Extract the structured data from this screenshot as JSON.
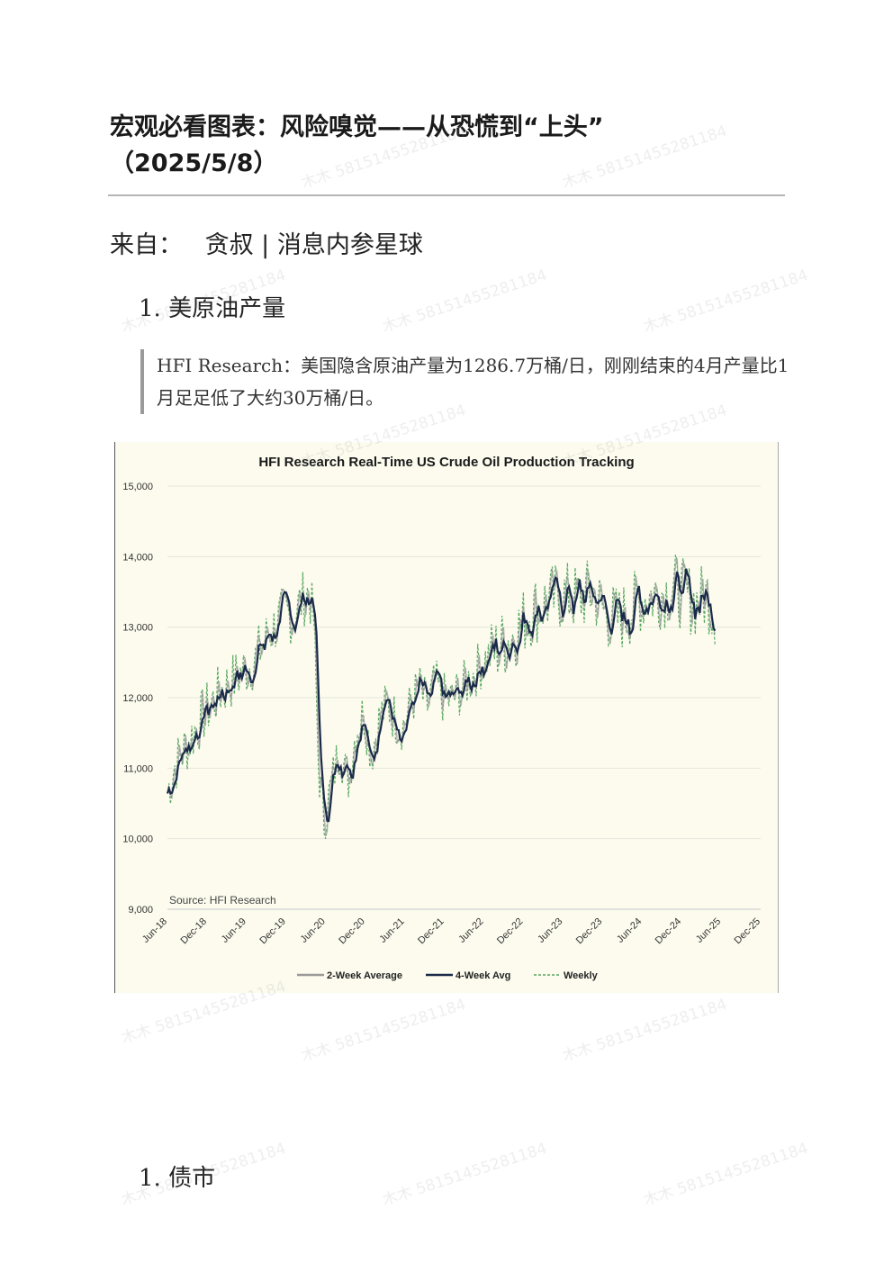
{
  "article": {
    "title_line1": "宏观必看图表：风险嗅觉——从恐慌到“上头”",
    "title_line2": "（2025/5/8）",
    "source_prefix": "来自：",
    "source_name": "贪叔 | 消息内参星球"
  },
  "sections": [
    {
      "heading": "1. 美原油产量",
      "quote": "HFI Research：美国隐含原油产量为1286.7万桶/日，刚刚结束的4月产量比1月足足低了大约30万桶/日。"
    },
    {
      "heading": "1. 债市"
    }
  ],
  "watermark_text": "木木 58151455281184",
  "chart_data": {
    "type": "line",
    "title": "HFI Research Real-Time US Crude Oil Production Tracking",
    "source_note": "Source: HFI Research",
    "xlabel": "",
    "ylabel": "",
    "ylim": [
      9000,
      15000
    ],
    "yticks": [
      "9,000",
      "10,000",
      "11,000",
      "12,000",
      "13,000",
      "14,000",
      "15,000"
    ],
    "ytick_values": [
      9000,
      10000,
      11000,
      12000,
      13000,
      14000,
      15000
    ],
    "xlim": [
      2018.42,
      2025.92
    ],
    "xticks": [
      "Jun-18",
      "Dec-18",
      "Jun-19",
      "Dec-19",
      "Jun-20",
      "Dec-20",
      "Jun-21",
      "Dec-21",
      "Jun-22",
      "Dec-22",
      "Jun-23",
      "Dec-23",
      "Jun-24",
      "Dec-24",
      "Jun-25",
      "Dec-25"
    ],
    "xtick_values": [
      2018.42,
      2018.92,
      2019.42,
      2019.92,
      2020.42,
      2020.92,
      2021.42,
      2021.92,
      2022.42,
      2022.92,
      2023.42,
      2023.92,
      2024.42,
      2024.92,
      2025.42,
      2025.92
    ],
    "grid": true,
    "legend_position": "bottom",
    "series": [
      {
        "name": "2-Week Average",
        "color": "#9a9a9a",
        "style": "solid"
      },
      {
        "name": "4-Week Avg",
        "color": "#1b2a4a",
        "style": "solid"
      },
      {
        "name": "Weekly",
        "color": "#5aa862",
        "style": "dashed"
      }
    ],
    "trend": {
      "x": [
        2018.42,
        2018.5,
        2018.7,
        2018.9,
        2019.1,
        2019.3,
        2019.5,
        2019.7,
        2019.9,
        2020.0,
        2020.1,
        2020.2,
        2020.27,
        2020.33,
        2020.4,
        2020.5,
        2020.6,
        2020.7,
        2020.8,
        2020.9,
        2021.0,
        2021.1,
        2021.2,
        2021.3,
        2021.4,
        2021.5,
        2021.6,
        2021.7,
        2021.8,
        2021.9,
        2022.0,
        2022.2,
        2022.4,
        2022.6,
        2022.8,
        2023.0,
        2023.2,
        2023.4,
        2023.6,
        2023.8,
        2023.95,
        2024.1,
        2024.25,
        2024.4,
        2024.55,
        2024.7,
        2024.85,
        2024.95,
        2025.1,
        2025.25,
        2025.34
      ],
      "y": [
        10650,
        11000,
        11400,
        11800,
        12100,
        12300,
        12500,
        12900,
        13200,
        13150,
        13350,
        13500,
        13150,
        11000,
        10250,
        10800,
        11300,
        10800,
        11500,
        11800,
        11200,
        11700,
        11900,
        11700,
        11600,
        11900,
        12150,
        11850,
        12200,
        12000,
        11950,
        12200,
        12500,
        12700,
        12900,
        13200,
        13350,
        13450,
        13400,
        13500,
        13200,
        13100,
        13200,
        13400,
        13450,
        13500,
        13550,
        13450,
        13350,
        13450,
        13200
      ]
    }
  }
}
